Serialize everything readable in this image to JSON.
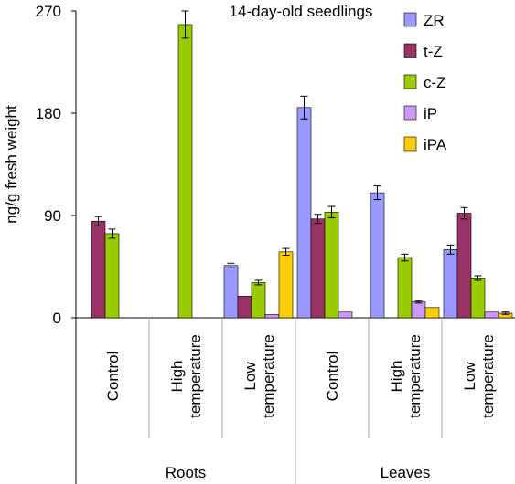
{
  "chart_data": {
    "type": "bar",
    "title": "14-day-old seedlings",
    "ylabel": "ng/g fresh weight",
    "xlabel": "",
    "ylim": [
      0,
      270
    ],
    "yticks": [
      "0",
      "90",
      "180",
      "270"
    ],
    "ytick_values": [
      0,
      90,
      180,
      270
    ],
    "categories": [
      {
        "group": "Roots",
        "label": [
          "Control"
        ]
      },
      {
        "group": "Roots",
        "label": [
          "High",
          "temperature"
        ]
      },
      {
        "group": "Roots",
        "label": [
          "Low",
          "temperature"
        ]
      },
      {
        "group": "Leaves",
        "label": [
          "Control"
        ]
      },
      {
        "group": "Leaves",
        "label": [
          "High",
          "temperature"
        ]
      },
      {
        "group": "Leaves",
        "label": [
          "Low",
          "temperature"
        ]
      }
    ],
    "groups": [
      "Roots",
      "Leaves"
    ],
    "series": [
      {
        "name": "ZR",
        "color": "#9999ff",
        "values": [
          0,
          0,
          46,
          185,
          110,
          60
        ],
        "errors": [
          0,
          0,
          2,
          10,
          6,
          4
        ]
      },
      {
        "name": "t-Z",
        "color": "#993366",
        "values": [
          85,
          0,
          19,
          87,
          0,
          92
        ],
        "errors": [
          4,
          0,
          0,
          4,
          0,
          5
        ]
      },
      {
        "name": "c-Z",
        "color": "#99cc00",
        "values": [
          74,
          258,
          31,
          93,
          53,
          35
        ],
        "errors": [
          4,
          12,
          2,
          5,
          3,
          2
        ]
      },
      {
        "name": "iP",
        "color": "#cc99ff",
        "values": [
          0,
          0,
          3,
          5,
          14,
          5
        ],
        "errors": [
          0,
          0,
          0,
          0,
          1,
          0
        ]
      },
      {
        "name": "iPA",
        "color": "#ffcc00",
        "values": [
          0,
          0,
          58,
          0,
          9,
          4
        ],
        "errors": [
          0,
          0,
          3,
          0,
          0,
          1
        ]
      }
    ],
    "legend_position": "top-right",
    "grid": false
  }
}
